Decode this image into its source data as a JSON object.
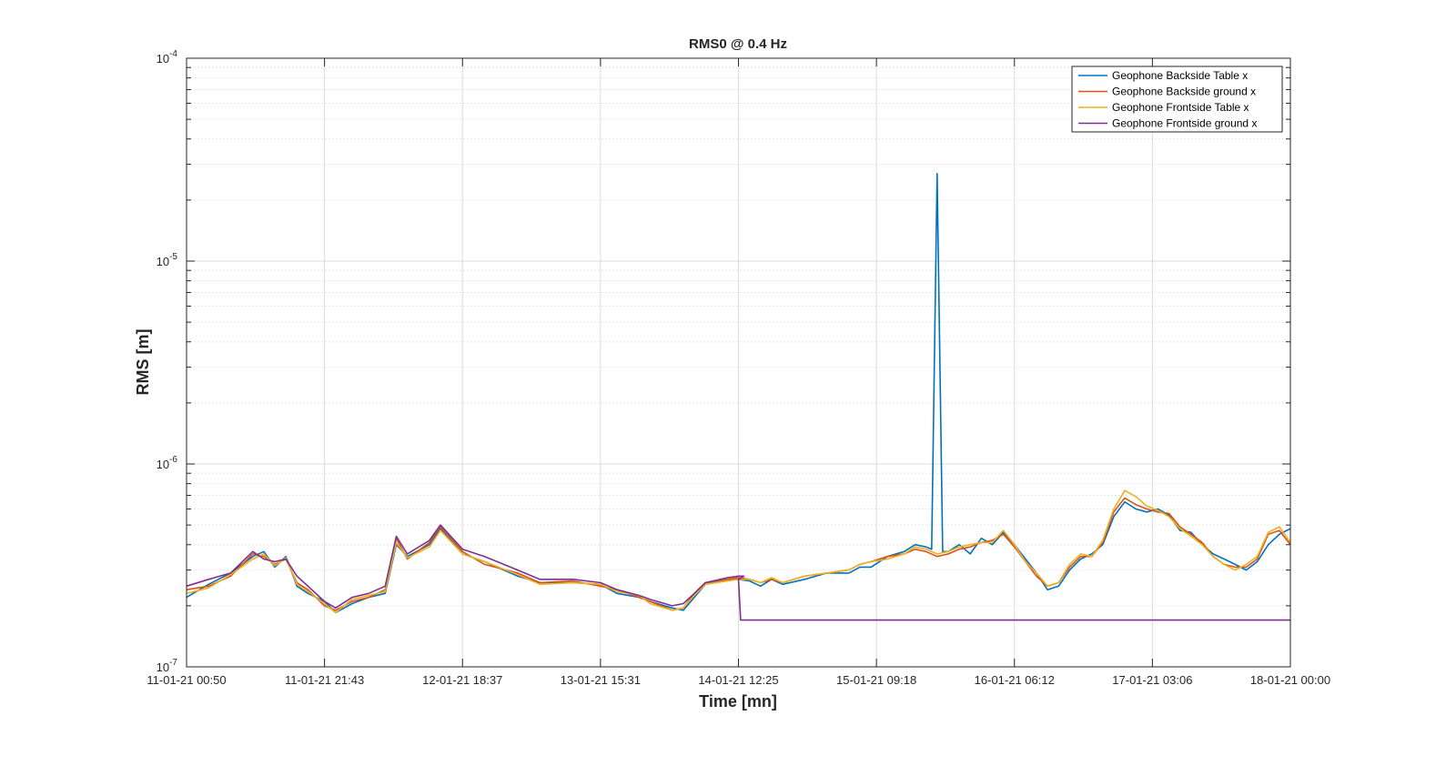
{
  "chart_data": {
    "type": "line",
    "title": "RMS0 @ 0.4 Hz",
    "xlabel": "Time [mn]",
    "ylabel": "RMS [m]",
    "yscale": "log",
    "ylim": [
      1e-07,
      0.0001
    ],
    "xlim": [
      0,
      1
    ],
    "xtick_positions": [
      0,
      0.125,
      0.25,
      0.375,
      0.5,
      0.625,
      0.75,
      0.875,
      1
    ],
    "xtick_labels": [
      "11-01-21 00:50",
      "11-01-21 21:43",
      "12-01-21 18:37",
      "13-01-21 15:31",
      "14-01-21 12:25",
      "15-01-21 09:18",
      "16-01-21 06:12",
      "17-01-21 03:06",
      "18-01-21 00:00"
    ],
    "ytick_values": [
      1e-07,
      1e-06,
      1e-05,
      0.0001
    ],
    "ytick_bases": [
      "10",
      "10",
      "10",
      "10"
    ],
    "ytick_exps": [
      "-7",
      "-6",
      "-5",
      "-4"
    ],
    "grid": true,
    "legend_position": "top-right",
    "series": [
      {
        "name": "Geophone Backside Table x",
        "color": "#0072BD",
        "points": [
          [
            0,
            2.2e-07
          ],
          [
            0.02,
            2.55e-07
          ],
          [
            0.04,
            2.9e-07
          ],
          [
            0.06,
            3.5e-07
          ],
          [
            0.07,
            3.7e-07
          ],
          [
            0.08,
            3.1e-07
          ],
          [
            0.09,
            3.5e-07
          ],
          [
            0.1,
            2.5e-07
          ],
          [
            0.11,
            2.3e-07
          ],
          [
            0.125,
            2.1e-07
          ],
          [
            0.135,
            1.85e-07
          ],
          [
            0.15,
            2.05e-07
          ],
          [
            0.165,
            2.2e-07
          ],
          [
            0.18,
            2.3e-07
          ],
          [
            0.19,
            4e-07
          ],
          [
            0.2,
            3.5e-07
          ],
          [
            0.22,
            4e-07
          ],
          [
            0.23,
            4.8e-07
          ],
          [
            0.25,
            3.6e-07
          ],
          [
            0.27,
            3.3e-07
          ],
          [
            0.3,
            2.8e-07
          ],
          [
            0.32,
            2.6e-07
          ],
          [
            0.35,
            2.6e-07
          ],
          [
            0.375,
            2.55e-07
          ],
          [
            0.39,
            2.3e-07
          ],
          [
            0.41,
            2.2e-07
          ],
          [
            0.42,
            2.1e-07
          ],
          [
            0.44,
            1.95e-07
          ],
          [
            0.45,
            1.9e-07
          ],
          [
            0.46,
            2.2e-07
          ],
          [
            0.47,
            2.55e-07
          ],
          [
            0.49,
            2.7e-07
          ],
          [
            0.5,
            2.7e-07
          ],
          [
            0.51,
            2.65e-07
          ],
          [
            0.52,
            2.5e-07
          ],
          [
            0.53,
            2.7e-07
          ],
          [
            0.54,
            2.55e-07
          ],
          [
            0.56,
            2.7e-07
          ],
          [
            0.58,
            2.9e-07
          ],
          [
            0.6,
            2.9e-07
          ],
          [
            0.61,
            3.1e-07
          ],
          [
            0.62,
            3.1e-07
          ],
          [
            0.635,
            3.5e-07
          ],
          [
            0.65,
            3.7e-07
          ],
          [
            0.66,
            4e-07
          ],
          [
            0.67,
            3.9e-07
          ],
          [
            0.675,
            3.8e-07
          ],
          [
            0.68,
            2.7e-05
          ],
          [
            0.685,
            3.7e-07
          ],
          [
            0.69,
            3.7e-07
          ],
          [
            0.7,
            4e-07
          ],
          [
            0.71,
            3.6e-07
          ],
          [
            0.72,
            4.3e-07
          ],
          [
            0.73,
            4e-07
          ],
          [
            0.74,
            4.6e-07
          ],
          [
            0.75,
            4e-07
          ],
          [
            0.76,
            3.4e-07
          ],
          [
            0.77,
            2.9e-07
          ],
          [
            0.78,
            2.4e-07
          ],
          [
            0.79,
            2.5e-07
          ],
          [
            0.8,
            3e-07
          ],
          [
            0.81,
            3.4e-07
          ],
          [
            0.82,
            3.6e-07
          ],
          [
            0.83,
            4e-07
          ],
          [
            0.84,
            5.5e-07
          ],
          [
            0.85,
            6.5e-07
          ],
          [
            0.86,
            6e-07
          ],
          [
            0.87,
            5.8e-07
          ],
          [
            0.88,
            6e-07
          ],
          [
            0.89,
            5.6e-07
          ],
          [
            0.9,
            4.7e-07
          ],
          [
            0.91,
            4.6e-07
          ],
          [
            0.92,
            4e-07
          ],
          [
            0.93,
            3.6e-07
          ],
          [
            0.94,
            3.4e-07
          ],
          [
            0.95,
            3.2e-07
          ],
          [
            0.96,
            3e-07
          ],
          [
            0.97,
            3.3e-07
          ],
          [
            0.98,
            4e-07
          ],
          [
            0.99,
            4.5e-07
          ],
          [
            1.0,
            4.8e-07
          ]
        ]
      },
      {
        "name": "Geophone Backside ground x",
        "color": "#D95319",
        "points": [
          [
            0,
            2.4e-07
          ],
          [
            0.02,
            2.5e-07
          ],
          [
            0.04,
            2.8e-07
          ],
          [
            0.06,
            3.6e-07
          ],
          [
            0.07,
            3.5e-07
          ],
          [
            0.08,
            3.2e-07
          ],
          [
            0.09,
            3.4e-07
          ],
          [
            0.1,
            2.6e-07
          ],
          [
            0.11,
            2.4e-07
          ],
          [
            0.125,
            2e-07
          ],
          [
            0.135,
            1.9e-07
          ],
          [
            0.15,
            2.1e-07
          ],
          [
            0.165,
            2.2e-07
          ],
          [
            0.18,
            2.4e-07
          ],
          [
            0.19,
            4.3e-07
          ],
          [
            0.2,
            3.4e-07
          ],
          [
            0.22,
            4.1e-07
          ],
          [
            0.23,
            4.9e-07
          ],
          [
            0.25,
            3.7e-07
          ],
          [
            0.27,
            3.2e-07
          ],
          [
            0.3,
            2.9e-07
          ],
          [
            0.32,
            2.6e-07
          ],
          [
            0.35,
            2.65e-07
          ],
          [
            0.375,
            2.5e-07
          ],
          [
            0.39,
            2.4e-07
          ],
          [
            0.41,
            2.2e-07
          ],
          [
            0.42,
            2.1e-07
          ],
          [
            0.44,
            1.9e-07
          ],
          [
            0.45,
            1.95e-07
          ],
          [
            0.46,
            2.3e-07
          ],
          [
            0.47,
            2.6e-07
          ],
          [
            0.49,
            2.7e-07
          ],
          [
            0.5,
            2.75e-07
          ],
          [
            0.51,
            2.7e-07
          ],
          [
            0.52,
            2.6e-07
          ],
          [
            0.53,
            2.7e-07
          ],
          [
            0.54,
            2.6e-07
          ],
          [
            0.56,
            2.8e-07
          ],
          [
            0.58,
            2.9e-07
          ],
          [
            0.6,
            3e-07
          ],
          [
            0.61,
            3.2e-07
          ],
          [
            0.62,
            3.3e-07
          ],
          [
            0.635,
            3.5e-07
          ],
          [
            0.65,
            3.6e-07
          ],
          [
            0.66,
            3.8e-07
          ],
          [
            0.67,
            3.7e-07
          ],
          [
            0.68,
            3.5e-07
          ],
          [
            0.69,
            3.6e-07
          ],
          [
            0.7,
            3.8e-07
          ],
          [
            0.71,
            3.9e-07
          ],
          [
            0.72,
            4.1e-07
          ],
          [
            0.73,
            4.2e-07
          ],
          [
            0.74,
            4.5e-07
          ],
          [
            0.75,
            3.9e-07
          ],
          [
            0.76,
            3.3e-07
          ],
          [
            0.77,
            2.8e-07
          ],
          [
            0.78,
            2.5e-07
          ],
          [
            0.79,
            2.6e-07
          ],
          [
            0.8,
            3.1e-07
          ],
          [
            0.81,
            3.5e-07
          ],
          [
            0.82,
            3.5e-07
          ],
          [
            0.83,
            4.1e-07
          ],
          [
            0.84,
            5.8e-07
          ],
          [
            0.85,
            6.8e-07
          ],
          [
            0.86,
            6.3e-07
          ],
          [
            0.87,
            6e-07
          ],
          [
            0.88,
            5.8e-07
          ],
          [
            0.89,
            5.7e-07
          ],
          [
            0.9,
            4.9e-07
          ],
          [
            0.91,
            4.5e-07
          ],
          [
            0.92,
            4.1e-07
          ],
          [
            0.93,
            3.5e-07
          ],
          [
            0.94,
            3.2e-07
          ],
          [
            0.95,
            3.1e-07
          ],
          [
            0.96,
            3.1e-07
          ],
          [
            0.97,
            3.4e-07
          ],
          [
            0.98,
            4.5e-07
          ],
          [
            0.99,
            4.7e-07
          ],
          [
            1.0,
            4e-07
          ]
        ]
      },
      {
        "name": "Geophone Frontside Table x",
        "color": "#EDB120",
        "points": [
          [
            0,
            2.3e-07
          ],
          [
            0.02,
            2.45e-07
          ],
          [
            0.04,
            2.85e-07
          ],
          [
            0.06,
            3.4e-07
          ],
          [
            0.07,
            3.6e-07
          ],
          [
            0.08,
            3.15e-07
          ],
          [
            0.09,
            3.45e-07
          ],
          [
            0.1,
            2.55e-07
          ],
          [
            0.11,
            2.35e-07
          ],
          [
            0.125,
            2.05e-07
          ],
          [
            0.135,
            1.85e-07
          ],
          [
            0.15,
            2.15e-07
          ],
          [
            0.165,
            2.25e-07
          ],
          [
            0.18,
            2.35e-07
          ],
          [
            0.19,
            4.1e-07
          ],
          [
            0.2,
            3.45e-07
          ],
          [
            0.22,
            3.9e-07
          ],
          [
            0.23,
            4.7e-07
          ],
          [
            0.25,
            3.6e-07
          ],
          [
            0.27,
            3.3e-07
          ],
          [
            0.3,
            2.85e-07
          ],
          [
            0.32,
            2.55e-07
          ],
          [
            0.35,
            2.6e-07
          ],
          [
            0.375,
            2.55e-07
          ],
          [
            0.39,
            2.35e-07
          ],
          [
            0.41,
            2.25e-07
          ],
          [
            0.42,
            2.05e-07
          ],
          [
            0.44,
            1.9e-07
          ],
          [
            0.45,
            1.95e-07
          ],
          [
            0.46,
            2.25e-07
          ],
          [
            0.47,
            2.55e-07
          ],
          [
            0.49,
            2.65e-07
          ],
          [
            0.5,
            2.7e-07
          ],
          [
            0.51,
            2.7e-07
          ],
          [
            0.52,
            2.6e-07
          ],
          [
            0.53,
            2.75e-07
          ],
          [
            0.54,
            2.6e-07
          ],
          [
            0.56,
            2.8e-07
          ],
          [
            0.58,
            2.9e-07
          ],
          [
            0.6,
            3e-07
          ],
          [
            0.61,
            3.2e-07
          ],
          [
            0.62,
            3.3e-07
          ],
          [
            0.635,
            3.4e-07
          ],
          [
            0.65,
            3.6e-07
          ],
          [
            0.66,
            3.9e-07
          ],
          [
            0.67,
            3.8e-07
          ],
          [
            0.68,
            3.6e-07
          ],
          [
            0.69,
            3.7e-07
          ],
          [
            0.7,
            3.9e-07
          ],
          [
            0.71,
            4e-07
          ],
          [
            0.72,
            4.1e-07
          ],
          [
            0.73,
            4.1e-07
          ],
          [
            0.74,
            4.7e-07
          ],
          [
            0.75,
            4e-07
          ],
          [
            0.76,
            3.3e-07
          ],
          [
            0.77,
            2.9e-07
          ],
          [
            0.78,
            2.5e-07
          ],
          [
            0.79,
            2.6e-07
          ],
          [
            0.8,
            3.2e-07
          ],
          [
            0.81,
            3.6e-07
          ],
          [
            0.82,
            3.5e-07
          ],
          [
            0.83,
            4.2e-07
          ],
          [
            0.84,
            6e-07
          ],
          [
            0.85,
            7.4e-07
          ],
          [
            0.86,
            6.9e-07
          ],
          [
            0.87,
            6.2e-07
          ],
          [
            0.88,
            5.9e-07
          ],
          [
            0.89,
            5.5e-07
          ],
          [
            0.9,
            4.8e-07
          ],
          [
            0.91,
            4.4e-07
          ],
          [
            0.92,
            4e-07
          ],
          [
            0.93,
            3.5e-07
          ],
          [
            0.94,
            3.2e-07
          ],
          [
            0.95,
            3e-07
          ],
          [
            0.96,
            3.2e-07
          ],
          [
            0.97,
            3.5e-07
          ],
          [
            0.98,
            4.6e-07
          ],
          [
            0.99,
            4.9e-07
          ],
          [
            1.0,
            4.1e-07
          ]
        ]
      },
      {
        "name": "Geophone Frontside ground x",
        "color": "#7E2F8E",
        "points": [
          [
            0,
            2.5e-07
          ],
          [
            0.02,
            2.7e-07
          ],
          [
            0.04,
            2.9e-07
          ],
          [
            0.06,
            3.7e-07
          ],
          [
            0.07,
            3.4e-07
          ],
          [
            0.08,
            3.3e-07
          ],
          [
            0.09,
            3.4e-07
          ],
          [
            0.1,
            2.8e-07
          ],
          [
            0.11,
            2.5e-07
          ],
          [
            0.125,
            2.1e-07
          ],
          [
            0.135,
            1.95e-07
          ],
          [
            0.15,
            2.2e-07
          ],
          [
            0.165,
            2.3e-07
          ],
          [
            0.18,
            2.5e-07
          ],
          [
            0.19,
            4.4e-07
          ],
          [
            0.2,
            3.6e-07
          ],
          [
            0.22,
            4.2e-07
          ],
          [
            0.23,
            5e-07
          ],
          [
            0.25,
            3.8e-07
          ],
          [
            0.27,
            3.5e-07
          ],
          [
            0.3,
            3e-07
          ],
          [
            0.32,
            2.7e-07
          ],
          [
            0.35,
            2.7e-07
          ],
          [
            0.375,
            2.6e-07
          ],
          [
            0.39,
            2.4e-07
          ],
          [
            0.41,
            2.25e-07
          ],
          [
            0.42,
            2.15e-07
          ],
          [
            0.44,
            2e-07
          ],
          [
            0.45,
            2.05e-07
          ],
          [
            0.46,
            2.3e-07
          ],
          [
            0.47,
            2.6e-07
          ],
          [
            0.49,
            2.75e-07
          ],
          [
            0.5,
            2.8e-07
          ],
          [
            0.505,
            2.8e-07
          ],
          [
            0.5,
            2.7e-07
          ],
          [
            0.502,
            1.7e-07
          ],
          [
            0.6,
            1.7e-07
          ],
          [
            0.7,
            1.7e-07
          ],
          [
            0.8,
            1.7e-07
          ],
          [
            0.9,
            1.7e-07
          ],
          [
            1.0,
            1.7e-07
          ]
        ]
      }
    ]
  }
}
